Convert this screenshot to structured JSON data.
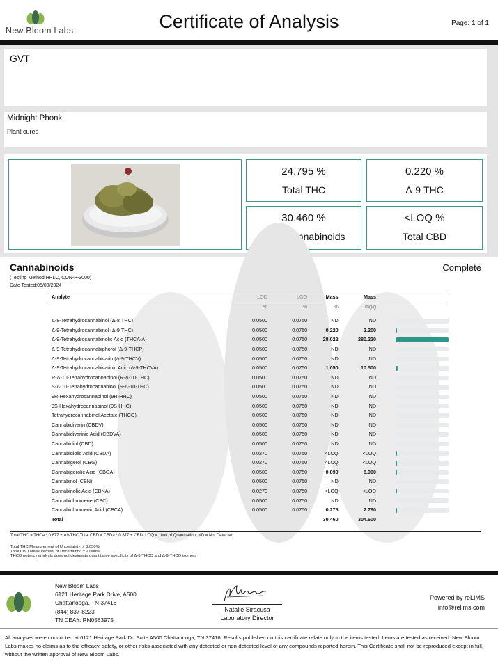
{
  "header": {
    "logo_text": "New Bloom Labs",
    "title": "Certificate of Analysis",
    "page": "Page: 1 of 1"
  },
  "client": {
    "name": "GVT"
  },
  "sample": {
    "name": "Midnight Phonk",
    "type": "Plant cured"
  },
  "summary": {
    "total_thc": {
      "value": "24.795 %",
      "label": "Total THC"
    },
    "d9_thc": {
      "value": "0.220 %",
      "label": "Δ-9 THC"
    },
    "total_cannabinoids": {
      "value": "30.460 %",
      "label": "Total Cannabinoids"
    },
    "total_cbd": {
      "value": "<LOQ %",
      "label": "Total CBD"
    }
  },
  "cannabinoids": {
    "title": "Cannabinoids",
    "status": "Complete",
    "method": "(Testing Method:HPLC, CON-P-3000)",
    "date_tested": "Date Tested:05/03/2024",
    "headers": {
      "analyte": "Analyte",
      "lod": "LOD",
      "loq": "LOQ",
      "mass1": "Mass",
      "mass2": "Mass"
    },
    "units": {
      "lod": "%",
      "loq": "%",
      "pct": "%",
      "mg": "mg/g"
    },
    "rows": [
      {
        "analyte": "Δ-8-Tetrahydrocannabinol (Δ-8 THC)",
        "lod": "0.0500",
        "loq": "0.0750",
        "pct": "ND",
        "mg": "ND",
        "bar": 0,
        "bold": false
      },
      {
        "analyte": "Δ-9-Tetrahydrocannabinol (Δ-9 THC)",
        "lod": "0.0500",
        "loq": "0.0750",
        "pct": "0.220",
        "mg": "2.200",
        "bar": 0.008,
        "bold": true
      },
      {
        "analyte": "Δ-9-Tetrahydrocannabinolic Acid (THCA-A)",
        "lod": "0.0500",
        "loq": "0.0750",
        "pct": "28.022",
        "mg": "280.220",
        "bar": 1,
        "bold": true
      },
      {
        "analyte": "Δ-9-Tetrahydrocannabiphorol (Δ-9-THCP)",
        "lod": "0.0500",
        "loq": "0.0750",
        "pct": "ND",
        "mg": "ND",
        "bar": 0,
        "bold": false
      },
      {
        "analyte": "Δ-9-Tetrahydrocannabivarin (Δ-9-THCV)",
        "lod": "0.0500",
        "loq": "0.0750",
        "pct": "ND",
        "mg": "ND",
        "bar": 0,
        "bold": false
      },
      {
        "analyte": "Δ-9-Tetrahydrocannabivarinic Acid (Δ-9-THCVA)",
        "lod": "0.0500",
        "loq": "0.0750",
        "pct": "1.050",
        "mg": "10.500",
        "bar": 0.037,
        "bold": true
      },
      {
        "analyte": "R-Δ-10-Tetrahydrocannabinol (R-Δ-10-THC)",
        "lod": "0.0500",
        "loq": "0.0750",
        "pct": "ND",
        "mg": "ND",
        "bar": 0,
        "bold": false
      },
      {
        "analyte": "S-Δ-10-Tetrahydrocannabinol (S-Δ-10-THC)",
        "lod": "0.0500",
        "loq": "0.0750",
        "pct": "ND",
        "mg": "ND",
        "bar": 0,
        "bold": false
      },
      {
        "analyte": "9R-Hexahydrocannabinol (9R-HHC)",
        "lod": "0.0500",
        "loq": "0.0750",
        "pct": "ND",
        "mg": "ND",
        "bar": 0,
        "bold": false
      },
      {
        "analyte": "9S-Hexahydrocannabinol (9S-HHC)",
        "lod": "0.0500",
        "loq": "0.0750",
        "pct": "ND",
        "mg": "ND",
        "bar": 0,
        "bold": false
      },
      {
        "analyte": "Tetrahydrocannabinol Acetate (THCO)",
        "lod": "0.0500",
        "loq": "0.0750",
        "pct": "ND",
        "mg": "ND",
        "bar": 0,
        "bold": false
      },
      {
        "analyte": "Cannabidivarin (CBDV)",
        "lod": "0.0500",
        "loq": "0.0750",
        "pct": "ND",
        "mg": "ND",
        "bar": 0,
        "bold": false
      },
      {
        "analyte": "Cannabidivarinic Acid (CBDVA)",
        "lod": "0.0500",
        "loq": "0.0750",
        "pct": "ND",
        "mg": "ND",
        "bar": 0,
        "bold": false
      },
      {
        "analyte": "Cannabidiol (CBD)",
        "lod": "0.0500",
        "loq": "0.0750",
        "pct": "ND",
        "mg": "ND",
        "bar": 0,
        "bold": false
      },
      {
        "analyte": "Cannabidiolic Acid (CBDA)",
        "lod": "0.0270",
        "loq": "0.0750",
        "pct": "<LOQ",
        "mg": "<LOQ",
        "bar": 0.003,
        "bold": false
      },
      {
        "analyte": "Cannabigerol (CBG)",
        "lod": "0.0270",
        "loq": "0.0750",
        "pct": "<LOQ",
        "mg": "<LOQ",
        "bar": 0.003,
        "bold": false
      },
      {
        "analyte": "Cannabigerolic Acid (CBGA)",
        "lod": "0.0500",
        "loq": "0.0750",
        "pct": "0.890",
        "mg": "8.900",
        "bar": 0.032,
        "bold": true
      },
      {
        "analyte": "Cannabinol (CBN)",
        "lod": "0.0500",
        "loq": "0.0750",
        "pct": "ND",
        "mg": "ND",
        "bar": 0,
        "bold": false
      },
      {
        "analyte": "Cannabinolic Acid (CBNA)",
        "lod": "0.0270",
        "loq": "0.0750",
        "pct": "<LOQ",
        "mg": "<LOQ",
        "bar": 0.003,
        "bold": false
      },
      {
        "analyte": "Cannabichromene (CBC)",
        "lod": "0.0500",
        "loq": "0.0750",
        "pct": "ND",
        "mg": "ND",
        "bar": 0,
        "bold": false
      },
      {
        "analyte": "Cannabichromenic Acid (CBCA)",
        "lod": "0.0500",
        "loq": "0.0750",
        "pct": "0.278",
        "mg": "2.780",
        "bar": 0.01,
        "bold": true
      }
    ],
    "total": {
      "label": "Total",
      "pct": "30.460",
      "mg": "304.600"
    },
    "legend": "Total THC = THCa * 0.877 + Δ9-THC;Total CBD = CBDa * 0.877 + CBD; LOQ = Limit of Quantitation; ND = Not Detected.",
    "notes": [
      "Total THC Measurement of Uncertainty: ± 0.050%",
      "Total CBD Measurement of Uncertainty: ± 2.000%",
      "THCO potency analysis does not designate quantitative specificity of Δ-8-THCO and Δ-9-THCO isomers"
    ]
  },
  "lab": {
    "name": "New Bloom Labs",
    "address1": "6121 Heritage Park Drive, A500",
    "address2": "Chattanooga, TN 37416",
    "phone": "(844) 837-8223",
    "dea": "TN DEA#: RN0563975"
  },
  "signatory": {
    "name": "Natalie Siracusa",
    "title": "Laboratory Director"
  },
  "powered": {
    "line1": "Powered by reLIMS",
    "line2": "info@relims.com"
  },
  "disclaimer": "All analyses were conducted at 6121 Heritage Park Dr, Suite A500 Chattanooga, TN 37416. Results published on this certificate relate only to the items tested. Items are tested as received. New Bloom Labs makes no claims as to the efficacy, safety, or other risks associated with any detected or non-detected level of any compounds reported herein. This Certificate shall not be reproduced except in full, without the written approval of New Bloom Labs.",
  "colors": {
    "accent": "#3a9a8a",
    "logo_green": "#8ab54a",
    "logo_dark": "#3b6b4a"
  },
  "icons": {
    "logo": "leaf-logo-icon",
    "signature": "signature-icon",
    "sample_photo": "cannabis-sample-photo"
  }
}
